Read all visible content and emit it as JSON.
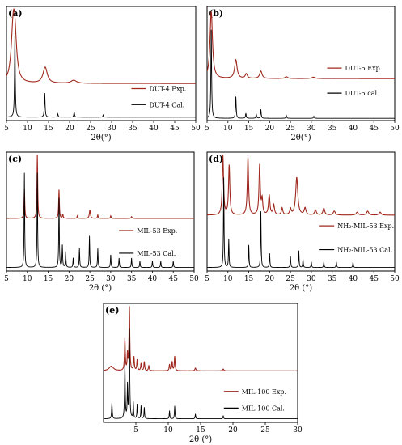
{
  "chart_data": [
    {
      "type": "line",
      "panel_label": "(a)",
      "xlabel": "2θ(°)",
      "xlim": [
        5,
        50
      ],
      "x_ticks": [
        5,
        10,
        15,
        20,
        25,
        30,
        35,
        40,
        45,
        50
      ],
      "series": [
        {
          "name": "DUT-4 Exp.",
          "color": "#a0281e",
          "baseline": 0.12,
          "peaks": [
            [
              6.6,
              0.82,
              0.55
            ],
            [
              7.0,
              0.55,
              0.5
            ],
            [
              14.2,
              0.26,
              0.6
            ],
            [
              21.0,
              0.05,
              0.8
            ]
          ]
        },
        {
          "name": "DUT-4 Cal.",
          "color": "#000000",
          "baseline": 0.0,
          "peaks": [
            [
              7.0,
              0.75,
              0.1
            ],
            [
              14.1,
              0.22,
              0.1
            ],
            [
              17.2,
              0.03,
              0.1
            ],
            [
              21.1,
              0.05,
              0.1
            ],
            [
              28.0,
              0.02,
              0.1
            ]
          ]
        }
      ]
    },
    {
      "type": "line",
      "panel_label": "(b)",
      "xlabel": "2θ(°)",
      "xlim": [
        5,
        50
      ],
      "x_ticks": [
        5,
        10,
        15,
        20,
        25,
        30,
        35,
        40,
        45,
        50
      ],
      "series": [
        {
          "name": "DUT-5 Exp.",
          "color": "#a0281e",
          "baseline": 0.23,
          "peaks": [
            [
              6.0,
              0.72,
              0.35
            ],
            [
              11.9,
              0.2,
              0.35
            ],
            [
              14.4,
              0.05,
              0.3
            ],
            [
              17.9,
              0.08,
              0.35
            ],
            [
              24.0,
              0.02,
              0.4
            ],
            [
              30.5,
              0.015,
              0.5
            ]
          ]
        },
        {
          "name": "DUT-5 cal.",
          "color": "#000000",
          "baseline": 0.0,
          "peaks": [
            [
              6.0,
              0.9,
              0.1
            ],
            [
              11.9,
              0.22,
              0.1
            ],
            [
              14.3,
              0.05,
              0.1
            ],
            [
              16.8,
              0.04,
              0.1
            ],
            [
              17.9,
              0.09,
              0.1
            ],
            [
              24.0,
              0.03,
              0.1
            ],
            [
              30.6,
              0.02,
              0.1
            ]
          ]
        }
      ]
    },
    {
      "type": "line",
      "panel_label": "(c)",
      "xlabel": "2θ (°)",
      "xlim": [
        5,
        50
      ],
      "x_ticks": [
        5,
        10,
        15,
        20,
        25,
        30,
        35,
        40,
        45,
        50
      ],
      "series": [
        {
          "name": "MIL-53 Exp.",
          "color": "#a0281e",
          "baseline": 0.37,
          "peaks": [
            [
              9.3,
              0.35,
              0.1
            ],
            [
              12.4,
              0.75,
              0.1
            ],
            [
              17.6,
              0.34,
              0.1
            ],
            [
              18.5,
              0.05,
              0.1
            ],
            [
              22.0,
              0.03,
              0.1
            ],
            [
              25.0,
              0.1,
              0.15
            ],
            [
              26.9,
              0.04,
              0.1
            ],
            [
              30.0,
              0.03,
              0.1
            ],
            [
              35.0,
              0.02,
              0.12
            ]
          ]
        },
        {
          "name": "MIL-53 Cal.",
          "color": "#000000",
          "baseline": 0.0,
          "peaks": [
            [
              9.3,
              0.3,
              0.08
            ],
            [
              12.4,
              0.3,
              0.08
            ],
            [
              17.6,
              0.22,
              0.08
            ],
            [
              18.4,
              0.07,
              0.08
            ],
            [
              19.2,
              0.05,
              0.08
            ],
            [
              21.0,
              0.03,
              0.08
            ],
            [
              22.5,
              0.06,
              0.08
            ],
            [
              24.9,
              0.1,
              0.08
            ],
            [
              26.9,
              0.06,
              0.08
            ],
            [
              30.0,
              0.04,
              0.08
            ],
            [
              32.0,
              0.03,
              0.08
            ],
            [
              35.0,
              0.03,
              0.08
            ],
            [
              37.0,
              0.02,
              0.08
            ],
            [
              40.0,
              0.02,
              0.08
            ],
            [
              42.0,
              0.02,
              0.08
            ],
            [
              45.0,
              0.02,
              0.08
            ]
          ]
        }
      ]
    },
    {
      "type": "line",
      "panel_label": "(d)",
      "xlabel": "2θ (°)",
      "xlim": [
        5,
        50
      ],
      "x_ticks": [
        5,
        10,
        15,
        20,
        25,
        30,
        35,
        40,
        45,
        50
      ],
      "series": [
        {
          "name": "NH₂-MIL-53 Exp.",
          "color": "#a0281e",
          "baseline": 0.3,
          "peaks": [
            [
              8.8,
              0.6,
              0.18
            ],
            [
              10.3,
              0.5,
              0.18
            ],
            [
              14.8,
              0.58,
              0.18
            ],
            [
              17.6,
              0.5,
              0.18
            ],
            [
              18.2,
              0.15,
              0.18
            ],
            [
              19.9,
              0.2,
              0.2
            ],
            [
              21.0,
              0.1,
              0.2
            ],
            [
              23.0,
              0.07,
              0.2
            ],
            [
              25.0,
              0.06,
              0.2
            ],
            [
              26.5,
              0.38,
              0.3
            ],
            [
              28.5,
              0.07,
              0.25
            ],
            [
              31.0,
              0.05,
              0.25
            ],
            [
              33.0,
              0.07,
              0.25
            ],
            [
              35.5,
              0.04,
              0.3
            ],
            [
              41.0,
              0.03,
              0.3
            ],
            [
              43.5,
              0.04,
              0.3
            ],
            [
              46.5,
              0.03,
              0.3
            ]
          ]
        },
        {
          "name": "NH₂-MIL-53 Cal.",
          "color": "#000000",
          "baseline": 0.0,
          "peaks": [
            [
              9.0,
              0.32,
              0.08
            ],
            [
              10.2,
              0.1,
              0.08
            ],
            [
              15.0,
              0.08,
              0.08
            ],
            [
              17.9,
              0.2,
              0.08
            ],
            [
              20.0,
              0.05,
              0.08
            ],
            [
              25.0,
              0.04,
              0.08
            ],
            [
              27.0,
              0.06,
              0.08
            ],
            [
              28.0,
              0.03,
              0.08
            ],
            [
              30.0,
              0.02,
              0.08
            ],
            [
              33.0,
              0.02,
              0.08
            ],
            [
              36.0,
              0.02,
              0.08
            ],
            [
              40.0,
              0.02,
              0.08
            ]
          ]
        }
      ]
    },
    {
      "type": "line",
      "panel_label": "(e)",
      "xlabel": "2θ (°)",
      "xlim": [
        0,
        30
      ],
      "x_ticks": [
        5,
        10,
        15,
        20,
        25,
        30
      ],
      "series": [
        {
          "name": "MIL-100 Exp.",
          "color": "#a0281e",
          "baseline": 0.28,
          "peaks": [
            [
              1.2,
              0.05,
              0.4
            ],
            [
              3.3,
              0.35,
              0.07
            ],
            [
              3.7,
              0.18,
              0.06
            ],
            [
              4.0,
              0.7,
              0.07
            ],
            [
              4.7,
              0.15,
              0.07
            ],
            [
              5.2,
              0.12,
              0.07
            ],
            [
              5.8,
              0.08,
              0.07
            ],
            [
              6.3,
              0.1,
              0.07
            ],
            [
              7.0,
              0.06,
              0.07
            ],
            [
              10.2,
              0.07,
              0.07
            ],
            [
              10.6,
              0.1,
              0.07
            ],
            [
              11.0,
              0.16,
              0.07
            ],
            [
              14.2,
              0.03,
              0.1
            ],
            [
              18.5,
              0.02,
              0.1
            ]
          ]
        },
        {
          "name": "MIL-100 Cal.",
          "color": "#000000",
          "baseline": 0.0,
          "peaks": [
            [
              1.3,
              0.1,
              0.06
            ],
            [
              3.3,
              0.35,
              0.06
            ],
            [
              3.7,
              0.2,
              0.05
            ],
            [
              4.0,
              0.55,
              0.06
            ],
            [
              4.6,
              0.1,
              0.05
            ],
            [
              5.2,
              0.09,
              0.05
            ],
            [
              5.8,
              0.08,
              0.05
            ],
            [
              6.3,
              0.07,
              0.05
            ],
            [
              10.2,
              0.05,
              0.05
            ],
            [
              11.0,
              0.08,
              0.05
            ],
            [
              14.2,
              0.03,
              0.05
            ],
            [
              18.5,
              0.02,
              0.05
            ]
          ]
        }
      ]
    }
  ]
}
